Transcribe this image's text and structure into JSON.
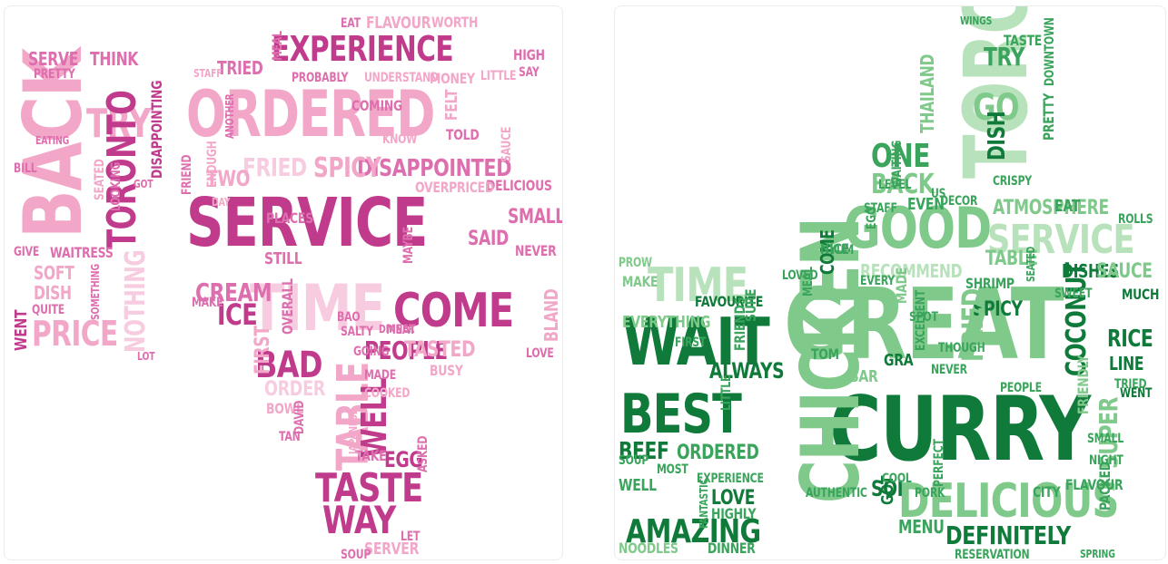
{
  "colors": {
    "negative": [
      "#c13b8d",
      "#de6fae",
      "#f2a7c9",
      "#f8cce0"
    ],
    "positive": [
      "#0f7a3a",
      "#3aa45c",
      "#7fc98a",
      "#b8e2bb"
    ]
  },
  "negative": {
    "icon": "thumbs-down-icon",
    "words": [
      {
        "t": "SERVICE",
        "c": 0
      },
      {
        "t": "ORDERED",
        "c": 2
      },
      {
        "t": "EXPERIENCE",
        "c": 0
      },
      {
        "t": "BACK",
        "c": 2
      },
      {
        "t": "TRY",
        "c": 2
      },
      {
        "t": "TORONTO",
        "c": 0
      },
      {
        "t": "TIME",
        "c": 3
      },
      {
        "t": "COME",
        "c": 0
      },
      {
        "t": "PRICE",
        "c": 2
      },
      {
        "t": "TASTE",
        "c": 0
      },
      {
        "t": "WAY",
        "c": 0
      },
      {
        "t": "BAD",
        "c": 0
      },
      {
        "t": "PEOPLE",
        "c": 0
      },
      {
        "t": "TABLE",
        "c": 2
      },
      {
        "t": "WELL",
        "c": 0
      },
      {
        "t": "ICE",
        "c": 0
      },
      {
        "t": "CREAM",
        "c": 1
      },
      {
        "t": "DISAPPOINTED",
        "c": 1
      },
      {
        "t": "FRIED",
        "c": 3
      },
      {
        "t": "SPICY",
        "c": 2
      },
      {
        "t": "SMALL",
        "c": 1
      },
      {
        "t": "TASTED",
        "c": 2
      },
      {
        "t": "NOTHING",
        "c": 3
      },
      {
        "t": "SERVE",
        "c": 1
      },
      {
        "t": "THINK",
        "c": 1
      },
      {
        "t": "DISH",
        "c": 2
      },
      {
        "t": "SOFT",
        "c": 2
      },
      {
        "t": "WENT",
        "c": 0
      },
      {
        "t": "QUITE",
        "c": 1
      },
      {
        "t": "WAITRESS",
        "c": 1
      },
      {
        "t": "GIVE",
        "c": 1
      },
      {
        "t": "TWO",
        "c": 2
      },
      {
        "t": "TRIED",
        "c": 1
      },
      {
        "t": "SAID",
        "c": 1
      },
      {
        "t": "NEVER",
        "c": 1
      },
      {
        "t": "DELICIOUS",
        "c": 1
      },
      {
        "t": "FLAVOUR",
        "c": 2
      },
      {
        "t": "WORTH",
        "c": 2
      },
      {
        "t": "EGG",
        "c": 0
      },
      {
        "t": "ASKED",
        "c": 1
      },
      {
        "t": "SERVER",
        "c": 2
      },
      {
        "t": "SOUP",
        "c": 1
      },
      {
        "t": "STILL",
        "c": 1
      },
      {
        "t": "PLACES",
        "c": 1
      },
      {
        "t": "MAKE",
        "c": 1
      },
      {
        "t": "ORDER",
        "c": 3
      },
      {
        "t": "BOWL",
        "c": 2
      },
      {
        "t": "FIRST",
        "c": 2
      },
      {
        "t": "SAUCE",
        "c": 2
      },
      {
        "t": "BLAND",
        "c": 2
      },
      {
        "t": "PRETTY",
        "c": 1
      },
      {
        "t": "MEAT",
        "c": 1
      },
      {
        "t": "SALTY",
        "c": 1
      },
      {
        "t": "GOING",
        "c": 1
      },
      {
        "t": "MADE",
        "c": 1
      },
      {
        "t": "TOLD",
        "c": 1
      },
      {
        "t": "BILL",
        "c": 1
      },
      {
        "t": "EATING",
        "c": 1
      },
      {
        "t": "SEATED",
        "c": 2
      },
      {
        "t": "HIGH",
        "c": 1
      },
      {
        "t": "SAY",
        "c": 1
      },
      {
        "t": "LET",
        "c": 1
      },
      {
        "t": "TAKE",
        "c": 1
      },
      {
        "t": "OVERALL",
        "c": 1
      },
      {
        "t": "MAYBE",
        "c": 1
      },
      {
        "t": "FRIEND",
        "c": 1
      },
      {
        "t": "STAFF",
        "c": 2
      },
      {
        "t": "COMING",
        "c": 1
      },
      {
        "t": "FELT",
        "c": 2
      },
      {
        "t": "KNOW",
        "c": 2
      },
      {
        "t": "EAT",
        "c": 1
      },
      {
        "t": "PROBABLY",
        "c": 1
      },
      {
        "t": "UNDERSTAND",
        "c": 2
      },
      {
        "t": "MONEY",
        "c": 2
      },
      {
        "t": "OVERPRICED",
        "c": 2
      },
      {
        "t": "DAVID",
        "c": 1
      },
      {
        "t": "TAN",
        "c": 1
      },
      {
        "t": "BUSY",
        "c": 2
      },
      {
        "t": "LOVE",
        "c": 1
      },
      {
        "t": "BAO",
        "c": 1
      },
      {
        "t": "DINNER",
        "c": 1
      },
      {
        "t": "LOT",
        "c": 1
      },
      {
        "t": "DISAPPOINTING",
        "c": 0
      },
      {
        "t": "MEAL",
        "c": 1
      },
      {
        "t": "LITTLE",
        "c": 2
      },
      {
        "t": "SOMETHING",
        "c": 1
      },
      {
        "t": "COOKED",
        "c": 2
      },
      {
        "t": "JAPANESE",
        "c": 2
      },
      {
        "t": "LOOKING",
        "c": 1
      },
      {
        "t": "ANOTHER",
        "c": 1
      },
      {
        "t": "ENOUGH",
        "c": 2
      },
      {
        "t": "GOT",
        "c": 1
      },
      {
        "t": "DAY",
        "c": 2
      }
    ]
  },
  "positive": {
    "icon": "thumbs-up-icon",
    "words": [
      {
        "t": "GREAT",
        "c": 2
      },
      {
        "t": "CURRY",
        "c": 0
      },
      {
        "t": "DELICIOUS",
        "c": 2
      },
      {
        "t": "GOOD",
        "c": 2
      },
      {
        "t": "SERVICE",
        "c": 3
      },
      {
        "t": "TORONTO",
        "c": 3
      },
      {
        "t": "WAIT",
        "c": 0
      },
      {
        "t": "BEST",
        "c": 0
      },
      {
        "t": "TIME",
        "c": 3
      },
      {
        "t": "AMAZING",
        "c": 0
      },
      {
        "t": "CHICKEN",
        "c": 2
      },
      {
        "t": "DEFINITELY",
        "c": 0
      },
      {
        "t": "BEEF",
        "c": 0
      },
      {
        "t": "ORDERED",
        "c": 1
      },
      {
        "t": "WELL",
        "c": 1
      },
      {
        "t": "LOVE",
        "c": 0
      },
      {
        "t": "HIGHLY",
        "c": 1
      },
      {
        "t": "ALWAYS",
        "c": 0
      },
      {
        "t": "FAVOURITE",
        "c": 0
      },
      {
        "t": "EVERYTHING",
        "c": 2
      },
      {
        "t": "MAKE",
        "c": 2
      },
      {
        "t": "GO",
        "c": 2
      },
      {
        "t": "TRY",
        "c": 1
      },
      {
        "t": "ONE",
        "c": 1
      },
      {
        "t": "BACK",
        "c": 2
      },
      {
        "t": "DISH",
        "c": 0
      },
      {
        "t": "PRETTY",
        "c": 1
      },
      {
        "t": "ATMOSPHERE",
        "c": 2
      },
      {
        "t": "EAT",
        "c": 1
      },
      {
        "t": "RECOMMEND",
        "c": 3
      },
      {
        "t": "TABLE",
        "c": 2
      },
      {
        "t": "DISHES",
        "c": 0
      },
      {
        "t": "SAUCE",
        "c": 2
      },
      {
        "t": "SHRIMP",
        "c": 1
      },
      {
        "t": "SPICY",
        "c": 0
      },
      {
        "t": "FRIED",
        "c": 2
      },
      {
        "t": "COCONUT",
        "c": 0
      },
      {
        "t": "RICE",
        "c": 0
      },
      {
        "t": "LINE",
        "c": 0
      },
      {
        "t": "TRIED",
        "c": 1
      },
      {
        "t": "WENT",
        "c": 0
      },
      {
        "t": "MUCH",
        "c": 0
      },
      {
        "t": "SUPER",
        "c": 2
      },
      {
        "t": "PACKED",
        "c": 1
      },
      {
        "t": "MENU",
        "c": 1
      },
      {
        "t": "SOI",
        "c": 0
      },
      {
        "t": "GOT",
        "c": 0
      },
      {
        "t": "COME",
        "c": 0
      },
      {
        "t": "NICE",
        "c": 1
      },
      {
        "t": "LOVED",
        "c": 1
      },
      {
        "t": "EVEN",
        "c": 1
      },
      {
        "t": "THAILAND",
        "c": 2
      },
      {
        "t": "TASTE",
        "c": 1
      },
      {
        "t": "ROLLS",
        "c": 1
      },
      {
        "t": "NOODLES",
        "c": 2
      },
      {
        "t": "DINNER",
        "c": 1
      },
      {
        "t": "RESERVATION",
        "c": 1
      },
      {
        "t": "FRIENDS",
        "c": 1
      },
      {
        "t": "SURE",
        "c": 1
      },
      {
        "t": "PROW",
        "c": 2
      },
      {
        "t": "STAFF",
        "c": 1
      },
      {
        "t": "US",
        "c": 1
      },
      {
        "t": "CRISPY",
        "c": 1
      },
      {
        "t": "DECOR",
        "c": 1
      },
      {
        "t": "SWEET",
        "c": 1
      },
      {
        "t": "SPOT",
        "c": 1
      },
      {
        "t": "EXCELLENT",
        "c": 1
      },
      {
        "t": "THOUGH",
        "c": 1
      },
      {
        "t": "PERFECT",
        "c": 1
      },
      {
        "t": "CITY",
        "c": 1
      },
      {
        "t": "FLAVOUR",
        "c": 1
      },
      {
        "t": "SPRING",
        "c": 1
      },
      {
        "t": "PORK",
        "c": 1
      },
      {
        "t": "COOL",
        "c": 1
      },
      {
        "t": "BAR",
        "c": 2
      },
      {
        "t": "GRA",
        "c": 0
      },
      {
        "t": "TOM",
        "c": 1
      },
      {
        "t": "MADE",
        "c": 2
      },
      {
        "t": "SOUP",
        "c": 1
      },
      {
        "t": "MOST",
        "c": 1
      },
      {
        "t": "LITTLE",
        "c": 1
      },
      {
        "t": "EXPERIENCE",
        "c": 1
      },
      {
        "t": "FIRST",
        "c": 1
      },
      {
        "t": "NEVER",
        "c": 1
      },
      {
        "t": "SEATED",
        "c": 1
      },
      {
        "t": "AUTHENTIC",
        "c": 1
      },
      {
        "t": "FANTASTIC",
        "c": 1
      },
      {
        "t": "DOWNTOWN",
        "c": 1
      },
      {
        "t": "WAITING",
        "c": 1
      },
      {
        "t": "LEVEL",
        "c": 1
      },
      {
        "t": "MEAL",
        "c": 1
      },
      {
        "t": "EVERY",
        "c": 1
      },
      {
        "t": "YUM",
        "c": 1
      },
      {
        "t": "EGG",
        "c": 1
      },
      {
        "t": "WINGS",
        "c": 1
      },
      {
        "t": "PEOPLE",
        "c": 1
      },
      {
        "t": "FRIENDLY",
        "c": 2
      },
      {
        "t": "SMALL",
        "c": 1
      },
      {
        "t": "NIGHT",
        "c": 1
      }
    ]
  }
}
